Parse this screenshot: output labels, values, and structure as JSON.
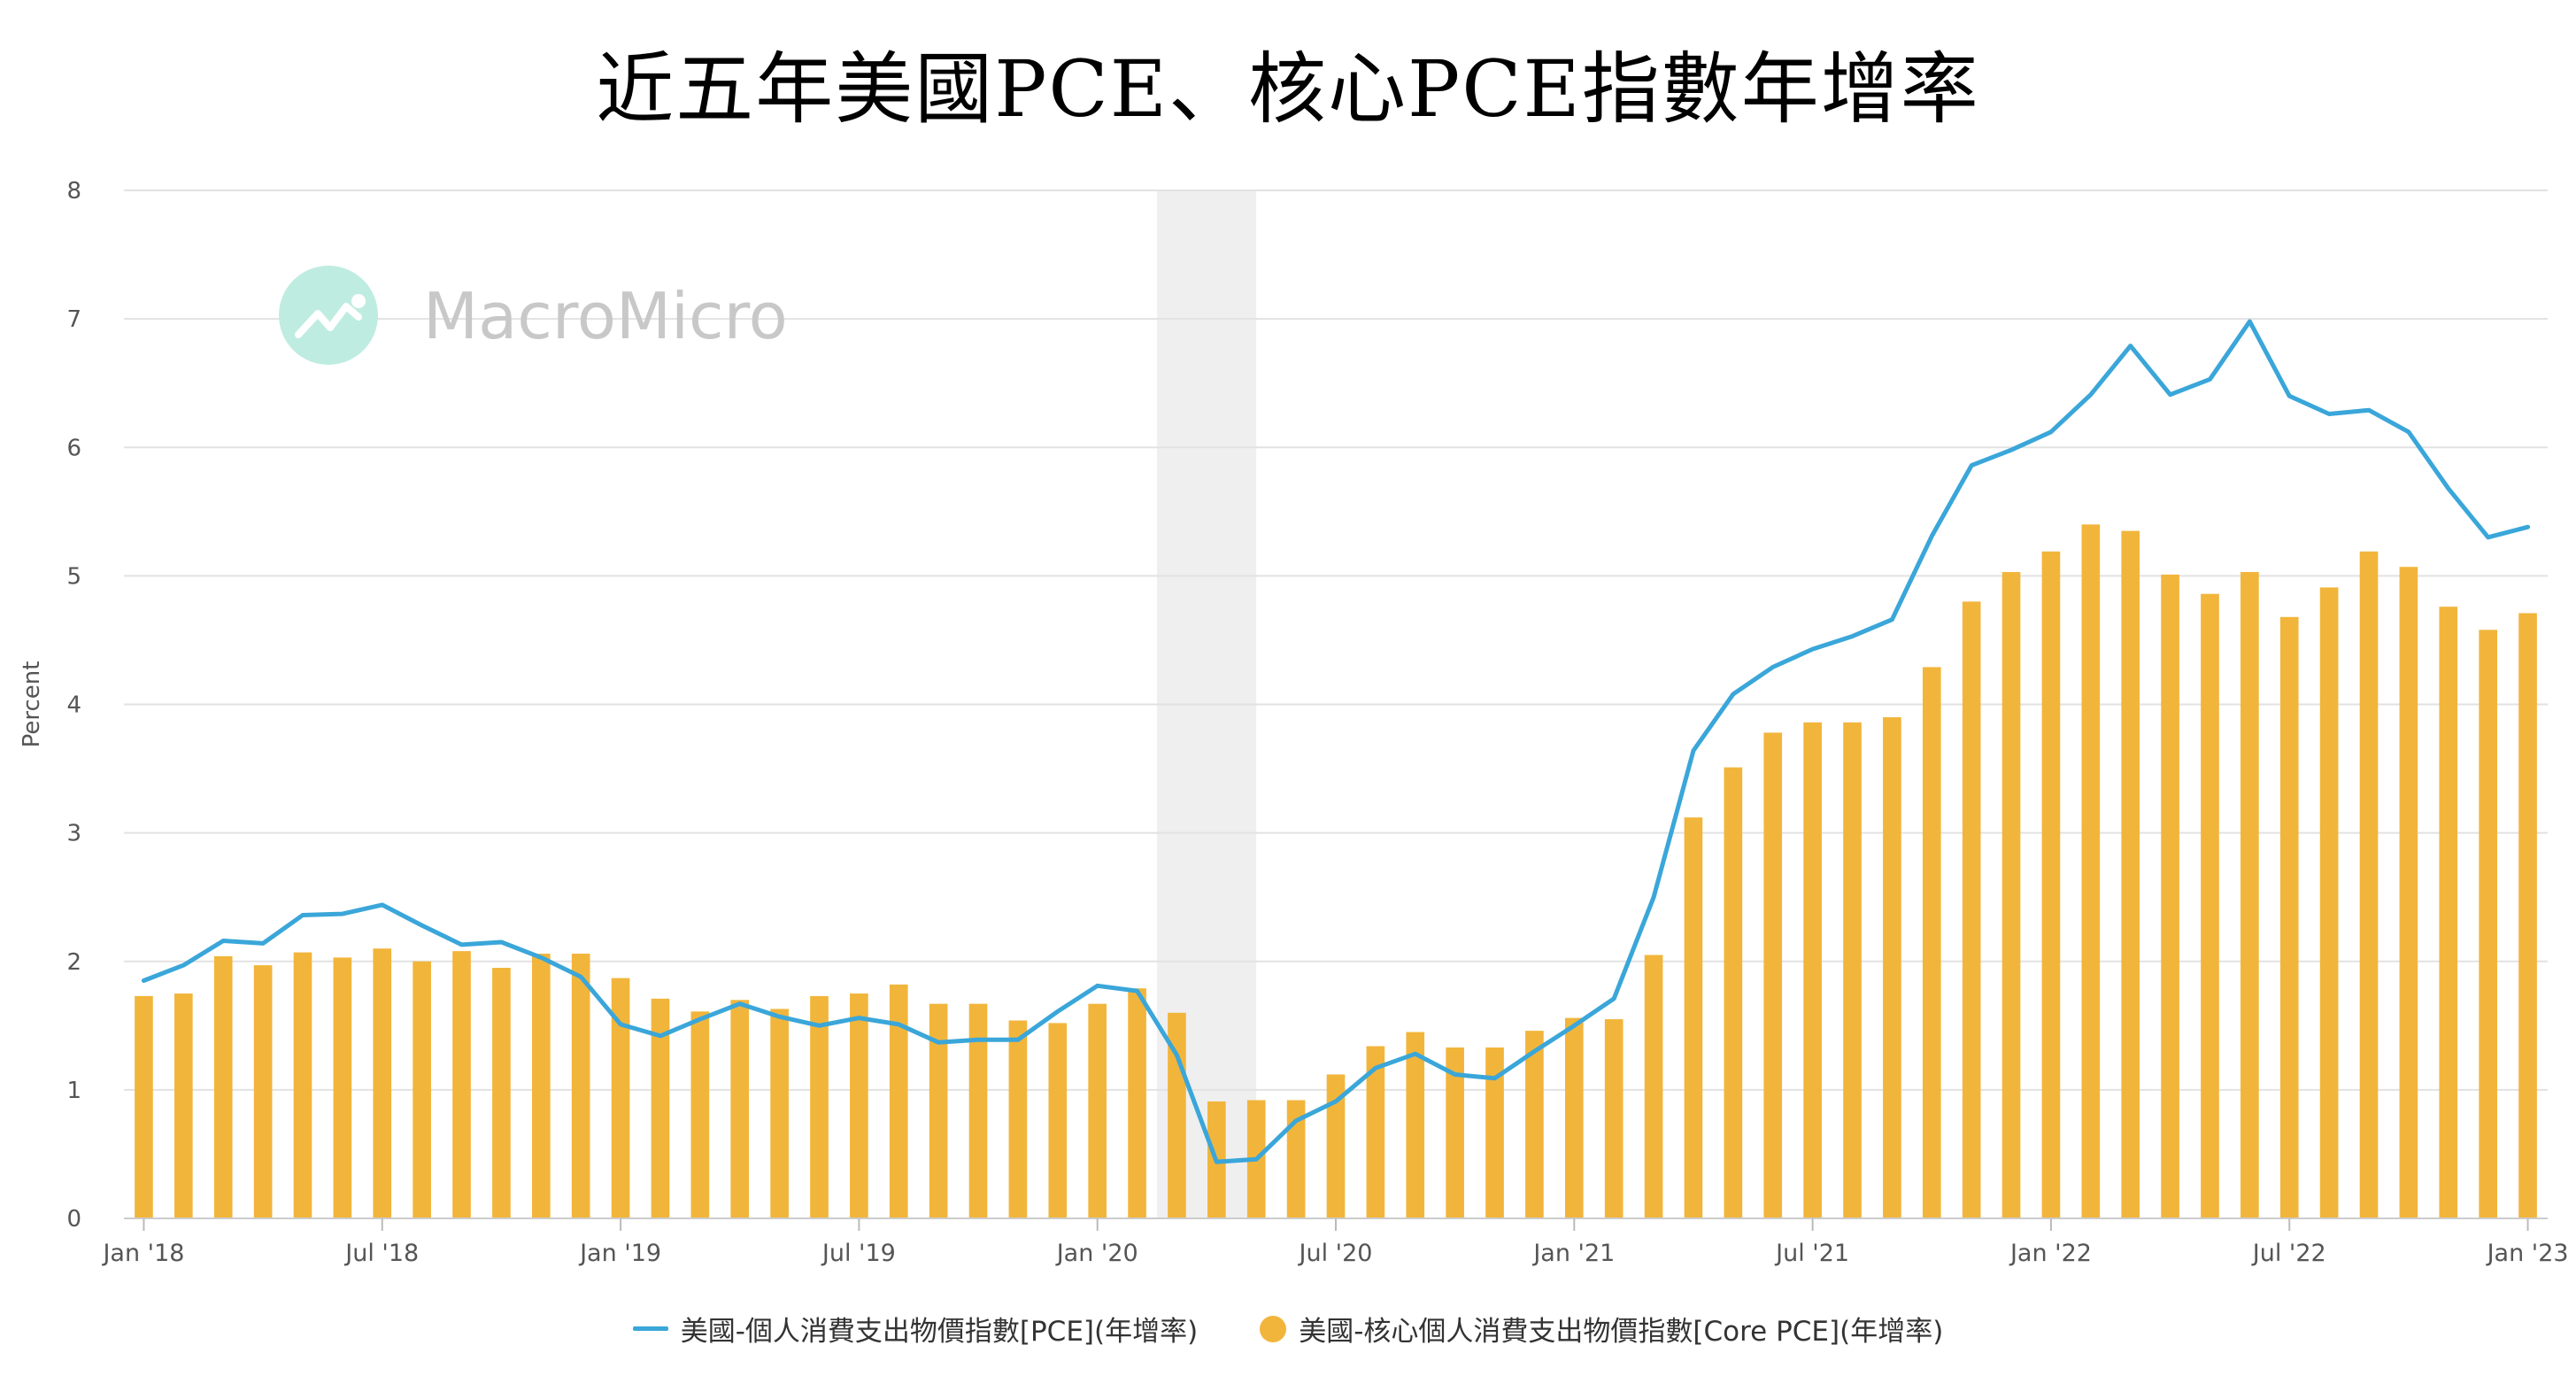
{
  "chart_data": {
    "type": "bar",
    "title": "近五年美國PCE、核心PCE指數年增率",
    "ylabel": "Percent",
    "xlabel": "",
    "ylim": [
      0,
      8
    ],
    "yticks": [
      "0",
      "1",
      "2",
      "3",
      "4",
      "5",
      "6",
      "7",
      "8"
    ],
    "xtick_labels": [
      "Jan '18",
      "Jul '18",
      "Jan '19",
      "Jul '19",
      "Jan '20",
      "Jul '20",
      "Jan '21",
      "Jul '21",
      "Jan '22",
      "Jul '22",
      "Jan '23"
    ],
    "categories": [
      "2018-01",
      "2018-02",
      "2018-03",
      "2018-04",
      "2018-05",
      "2018-06",
      "2018-07",
      "2018-08",
      "2018-09",
      "2018-10",
      "2018-11",
      "2018-12",
      "2019-01",
      "2019-02",
      "2019-03",
      "2019-04",
      "2019-05",
      "2019-06",
      "2019-07",
      "2019-08",
      "2019-09",
      "2019-10",
      "2019-11",
      "2019-12",
      "2020-01",
      "2020-02",
      "2020-03",
      "2020-04",
      "2020-05",
      "2020-06",
      "2020-07",
      "2020-08",
      "2020-09",
      "2020-10",
      "2020-11",
      "2020-12",
      "2021-01",
      "2021-02",
      "2021-03",
      "2021-04",
      "2021-05",
      "2021-06",
      "2021-07",
      "2021-08",
      "2021-09",
      "2021-10",
      "2021-11",
      "2021-12",
      "2022-01",
      "2022-02",
      "2022-03",
      "2022-04",
      "2022-05",
      "2022-06",
      "2022-07",
      "2022-08",
      "2022-09",
      "2022-10",
      "2022-11",
      "2022-12",
      "2023-01"
    ],
    "recession_shading": [
      "2020-02",
      "2020-04"
    ],
    "grid": true,
    "legend_position": "bottom",
    "series": [
      {
        "name": "美國-個人消費支出物價指數[PCE](年增率)",
        "type": "line",
        "color": "#3aa6d9",
        "values": [
          1.85,
          1.97,
          2.16,
          2.14,
          2.36,
          2.37,
          2.44,
          2.28,
          2.13,
          2.15,
          2.03,
          1.88,
          1.51,
          1.42,
          1.55,
          1.67,
          1.57,
          1.5,
          1.56,
          1.51,
          1.37,
          1.39,
          1.39,
          1.61,
          1.81,
          1.77,
          1.27,
          0.44,
          0.46,
          0.76,
          0.91,
          1.17,
          1.28,
          1.12,
          1.09,
          1.3,
          1.5,
          1.71,
          2.5,
          3.64,
          4.08,
          4.29,
          4.43,
          4.53,
          4.66,
          5.31,
          5.86,
          5.98,
          6.12,
          6.41,
          6.79,
          6.41,
          6.53,
          6.98,
          6.4,
          6.26,
          6.29,
          6.12,
          5.68,
          5.3,
          5.38
        ]
      },
      {
        "name": "美國-核心個人消費支出物價指數[Core PCE](年增率)",
        "type": "bar",
        "color": "#f2b53b",
        "values": [
          1.73,
          1.75,
          2.04,
          1.97,
          2.07,
          2.03,
          2.1,
          2.0,
          2.08,
          1.95,
          2.06,
          2.06,
          1.87,
          1.71,
          1.61,
          1.7,
          1.63,
          1.73,
          1.75,
          1.82,
          1.67,
          1.67,
          1.54,
          1.52,
          1.67,
          1.79,
          1.6,
          0.91,
          0.92,
          0.92,
          1.12,
          1.34,
          1.45,
          1.33,
          1.33,
          1.46,
          1.56,
          1.55,
          2.05,
          3.12,
          3.51,
          3.78,
          3.86,
          3.86,
          3.9,
          4.29,
          4.8,
          5.03,
          5.19,
          5.4,
          5.35,
          5.01,
          4.86,
          5.03,
          4.68,
          4.91,
          5.19,
          5.07,
          4.76,
          4.58,
          4.71
        ]
      }
    ]
  },
  "watermark": {
    "text": "MacroMicro",
    "icon": "macromicro-logo-icon",
    "logo_color": "#bfece0"
  }
}
